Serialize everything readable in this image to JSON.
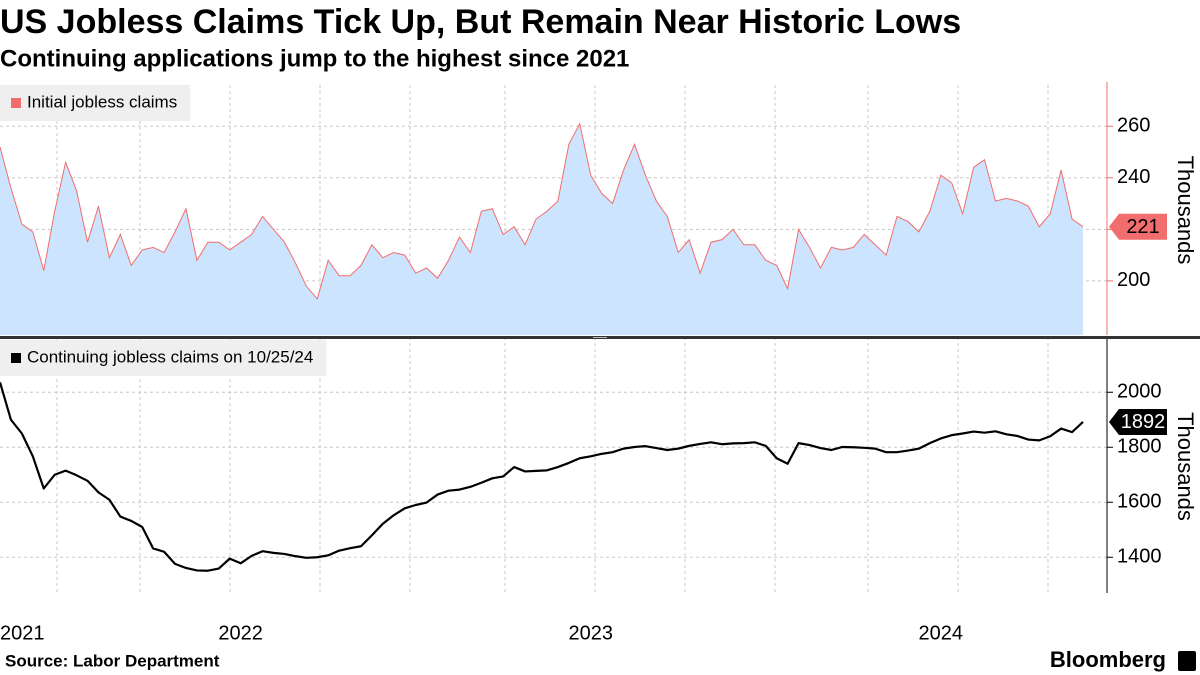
{
  "title": "US Jobless Claims Tick Up, But Remain Near Historic Lows",
  "subtitle": "Continuing applications jump to the highest since 2021",
  "source": "Source: Labor Department",
  "brand": "Bloomberg",
  "chart_data": [
    {
      "type": "area",
      "y_label": "Thousands",
      "grid": true,
      "legend": "top-left",
      "end_label": true,
      "fill": "#cce4fd",
      "axis_color": "#f07070",
      "ylim": [
        179,
        276
      ],
      "yticks": [
        200,
        220,
        240,
        260
      ],
      "series": [
        {
          "name": "Initial jobless claims",
          "color": "#f26d6d",
          "values": [
            252,
            236,
            222,
            219,
            204,
            227,
            246,
            235,
            215,
            229,
            209,
            218,
            206,
            212,
            213,
            211,
            219,
            228,
            208,
            215,
            215,
            212,
            215,
            218,
            225,
            220,
            215,
            207,
            198,
            193,
            208,
            202,
            202,
            206,
            214,
            209,
            211,
            210,
            203,
            205,
            201,
            208,
            217,
            211,
            227,
            228,
            218,
            221,
            214,
            224,
            227,
            231,
            253,
            261,
            241,
            234,
            230,
            243,
            253,
            241,
            231,
            225,
            211,
            216,
            203,
            215,
            216,
            220,
            214,
            214,
            208,
            206,
            197,
            220,
            213,
            205,
            213,
            212,
            213,
            218,
            214,
            210,
            225,
            223,
            219,
            227,
            241,
            238,
            226,
            244,
            247,
            231,
            232,
            231,
            229,
            221,
            226,
            243,
            224,
            221
          ]
        }
      ]
    },
    {
      "type": "line",
      "y_label": "Thousands",
      "grid": true,
      "legend": "top-left",
      "end_label": true,
      "axis_color": "#000000",
      "ylim": [
        1270,
        2190
      ],
      "yticks": [
        1400,
        1600,
        1800,
        2000
      ],
      "categories": [
        "2021",
        null,
        null,
        null,
        null,
        null,
        null,
        null,
        null,
        null,
        null,
        null,
        null,
        null,
        null,
        null,
        null,
        null,
        null,
        null,
        null,
        null,
        "2022",
        null,
        null,
        null,
        null,
        null,
        null,
        null,
        null,
        null,
        null,
        null,
        null,
        null,
        null,
        null,
        null,
        null,
        null,
        null,
        null,
        null,
        null,
        null,
        null,
        null,
        null,
        null,
        null,
        null,
        null,
        null,
        "2023",
        null,
        null,
        null,
        null,
        null,
        null,
        null,
        null,
        null,
        null,
        null,
        null,
        null,
        null,
        null,
        null,
        null,
        null,
        null,
        null,
        null,
        null,
        null,
        null,
        null,
        null,
        null,
        null,
        null,
        null,
        null,
        "2024",
        null,
        null,
        null,
        null,
        null,
        null,
        null,
        null,
        null,
        null,
        null,
        null,
        null
      ],
      "series": [
        {
          "name": "Continuing jobless claims on 10/25/24",
          "color": "#000000",
          "values": [
            2036,
            1900,
            1850,
            1767,
            1650,
            1700,
            1715,
            1698,
            1678,
            1636,
            1609,
            1548,
            1532,
            1510,
            1432,
            1420,
            1376,
            1361,
            1352,
            1351,
            1359,
            1395,
            1378,
            1405,
            1422,
            1416,
            1412,
            1404,
            1398,
            1400,
            1407,
            1424,
            1433,
            1440,
            1480,
            1522,
            1553,
            1578,
            1590,
            1599,
            1628,
            1642,
            1646,
            1656,
            1671,
            1687,
            1694,
            1728,
            1712,
            1714,
            1716,
            1728,
            1743,
            1760,
            1767,
            1776,
            1782,
            1795,
            1801,
            1804,
            1797,
            1790,
            1795,
            1805,
            1812,
            1818,
            1811,
            1814,
            1815,
            1818,
            1805,
            1760,
            1740,
            1815,
            1808,
            1797,
            1790,
            1801,
            1800,
            1798,
            1795,
            1782,
            1782,
            1788,
            1795,
            1815,
            1832,
            1844,
            1850,
            1857,
            1853,
            1858,
            1847,
            1841,
            1828,
            1825,
            1840,
            1868,
            1855,
            1892
          ]
        }
      ]
    }
  ]
}
